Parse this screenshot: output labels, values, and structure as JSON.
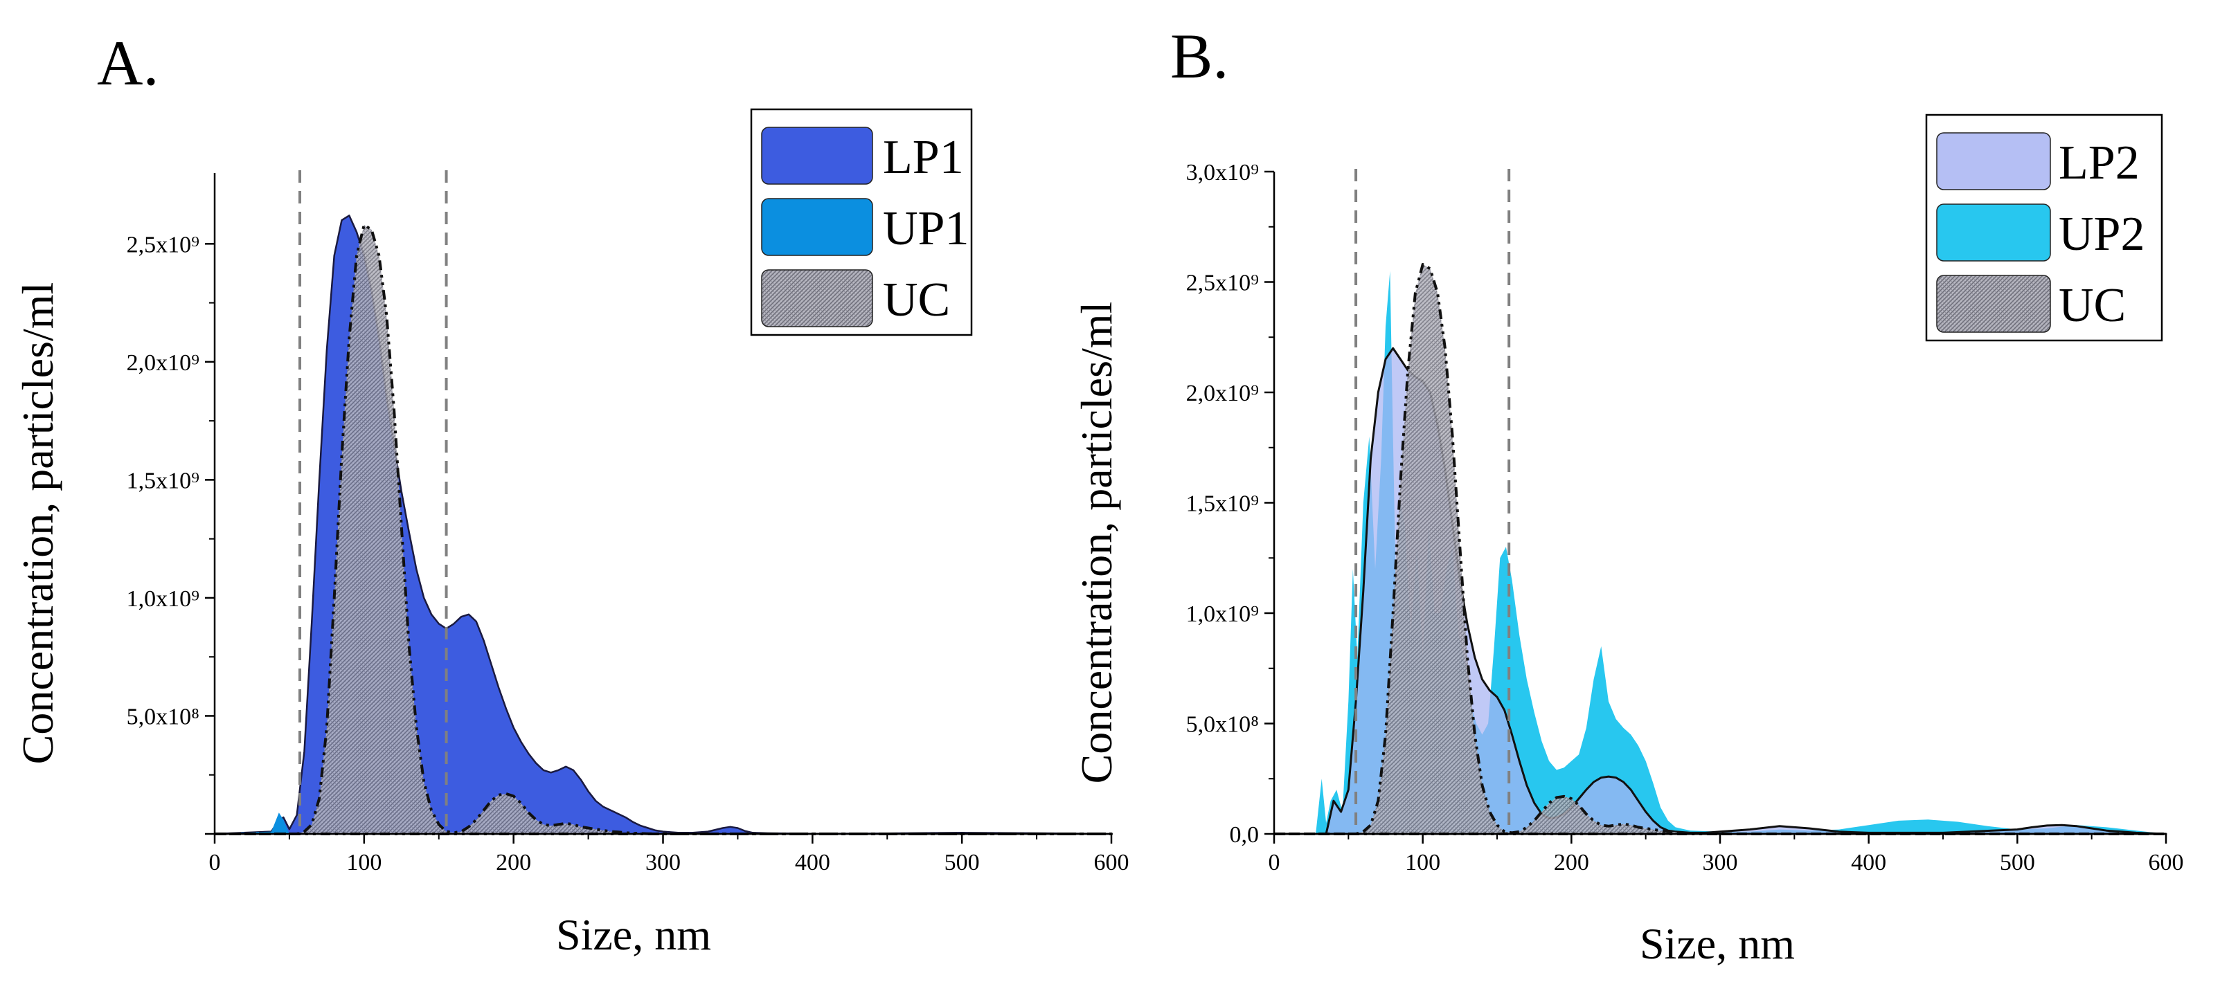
{
  "figure": {
    "panels": [
      {
        "id": "A",
        "panel_label": "A.",
        "chart_key": 0,
        "ytick_values": [
          0,
          500000000,
          1000000000,
          1500000000,
          2000000000,
          2500000000
        ],
        "ytick_labels": [
          "",
          "5,0x10⁸",
          "1,0x10⁹",
          "1,5x10⁹",
          "2,0x10⁹",
          "2,5x10⁹"
        ]
      },
      {
        "id": "B",
        "panel_label": "B.",
        "chart_key": 1,
        "ytick_values": [
          0,
          500000000,
          1000000000,
          1500000000,
          2000000000,
          2500000000,
          3000000000
        ],
        "ytick_labels": [
          "0,0",
          "5,0x10⁸",
          "1,0x10⁹",
          "1,5x10⁹",
          "2,0x10⁹",
          "2,5x10⁹",
          "3,0x10⁹"
        ]
      }
    ]
  },
  "colors": {
    "LP1": "#3d5ce0",
    "UP1": "#0b8fe0",
    "LP2": "#a8b4f2",
    "UP2": "#1cc4ee",
    "UC": "#9a9aa6",
    "dash": "#808080",
    "axis": "#000000"
  },
  "chart_data": [
    {
      "type": "area",
      "title": "",
      "xlabel": "Size, nm",
      "ylabel": "Concentration, particles/ml",
      "xlim": [
        0,
        600
      ],
      "ylim": [
        0,
        2800000000
      ],
      "xticks": [
        0,
        100,
        200,
        300,
        400,
        500,
        600
      ],
      "xtick_labels": [
        "0",
        "100",
        "200",
        "300",
        "400",
        "500",
        "600"
      ],
      "vlines": [
        57,
        155
      ],
      "legend_position": "top-right",
      "legend": [
        "LP1",
        "UP1",
        "UC"
      ],
      "series": [
        {
          "name": "LP1",
          "x": [
            0,
            38,
            43,
            46,
            50,
            55,
            60,
            65,
            70,
            75,
            80,
            85,
            90,
            95,
            100,
            105,
            110,
            115,
            120,
            125,
            130,
            135,
            140,
            145,
            150,
            155,
            160,
            165,
            170,
            175,
            180,
            185,
            190,
            195,
            200,
            205,
            210,
            215,
            220,
            225,
            230,
            235,
            240,
            245,
            250,
            255,
            260,
            265,
            270,
            275,
            280,
            285,
            290,
            295,
            300,
            310,
            320,
            330,
            340,
            345,
            350,
            355,
            360,
            370,
            380,
            400,
            450,
            500,
            550,
            600
          ],
          "y": [
            0,
            10000000,
            60000000,
            70000000,
            20000000,
            80000000,
            350000000,
            900000000,
            1500000000,
            2050000000,
            2450000000,
            2600000000,
            2620000000,
            2550000000,
            2450000000,
            2300000000,
            2100000000,
            1850000000,
            1650000000,
            1450000000,
            1280000000,
            1120000000,
            1000000000,
            930000000,
            890000000,
            870000000,
            890000000,
            920000000,
            930000000,
            900000000,
            820000000,
            720000000,
            620000000,
            530000000,
            450000000,
            390000000,
            340000000,
            300000000,
            270000000,
            260000000,
            270000000,
            285000000,
            270000000,
            230000000,
            180000000,
            140000000,
            115000000,
            100000000,
            85000000,
            70000000,
            50000000,
            35000000,
            25000000,
            15000000,
            10000000,
            5000000,
            5000000,
            10000000,
            25000000,
            30000000,
            25000000,
            12000000,
            5000000,
            3000000,
            2000000,
            1000000,
            2000000,
            5000000,
            3000000,
            0
          ]
        },
        {
          "name": "UP1",
          "x": [
            0,
            38,
            43,
            46,
            50,
            600
          ],
          "y": [
            0,
            10000000,
            90000000,
            60000000,
            0,
            0
          ]
        },
        {
          "name": "UC",
          "x": [
            0,
            55,
            60,
            65,
            70,
            75,
            80,
            85,
            90,
            95,
            100,
            105,
            110,
            115,
            120,
            125,
            130,
            135,
            140,
            145,
            150,
            155,
            160,
            165,
            170,
            175,
            180,
            185,
            190,
            195,
            200,
            205,
            210,
            215,
            220,
            225,
            230,
            235,
            240,
            245,
            250,
            255,
            260,
            265,
            270,
            275,
            280,
            285,
            290,
            300,
            600
          ],
          "y": [
            0,
            0,
            10000000,
            40000000,
            150000000,
            450000000,
            1000000000,
            1600000000,
            2100000000,
            2450000000,
            2580000000,
            2560000000,
            2450000000,
            2200000000,
            1800000000,
            1300000000,
            800000000,
            450000000,
            220000000,
            100000000,
            40000000,
            10000000,
            5000000,
            10000000,
            30000000,
            60000000,
            100000000,
            140000000,
            165000000,
            170000000,
            160000000,
            130000000,
            90000000,
            60000000,
            40000000,
            35000000,
            40000000,
            45000000,
            40000000,
            30000000,
            25000000,
            20000000,
            15000000,
            10000000,
            8000000,
            5000000,
            3000000,
            2000000,
            1000000,
            0,
            0
          ]
        }
      ]
    },
    {
      "type": "area",
      "title": "",
      "xlabel": "Size, nm",
      "ylabel": "Concentration, particles/ml",
      "xlim": [
        0,
        600
      ],
      "ylim": [
        0,
        3000000000
      ],
      "xticks": [
        0,
        100,
        200,
        300,
        400,
        500,
        600
      ],
      "xtick_labels": [
        "0",
        "100",
        "200",
        "300",
        "400",
        "500",
        "600"
      ],
      "vlines": [
        55,
        158
      ],
      "legend_position": "top-right",
      "legend": [
        "LP2",
        "UP2",
        "UC"
      ],
      "series": [
        {
          "name": "UP2",
          "x": [
            0,
            28,
            32,
            35,
            38,
            42,
            46,
            50,
            53,
            56,
            60,
            64,
            68,
            72,
            75,
            78,
            80,
            82,
            85,
            88,
            92,
            96,
            100,
            104,
            108,
            112,
            116,
            120,
            124,
            128,
            132,
            136,
            140,
            144,
            148,
            152,
            156,
            160,
            165,
            170,
            175,
            180,
            185,
            190,
            195,
            200,
            205,
            210,
            215,
            220,
            225,
            230,
            235,
            240,
            245,
            250,
            255,
            260,
            265,
            270,
            280,
            300,
            320,
            340,
            360,
            380,
            400,
            420,
            440,
            460,
            480,
            500,
            520,
            540,
            560,
            580,
            600
          ],
          "y": [
            0,
            0,
            250000000,
            50000000,
            150000000,
            200000000,
            100000000,
            600000000,
            1200000000,
            800000000,
            1500000000,
            1800000000,
            1200000000,
            1700000000,
            2300000000,
            2550000000,
            1800000000,
            1100000000,
            1500000000,
            1400000000,
            900000000,
            1300000000,
            800000000,
            1400000000,
            1000000000,
            1000000000,
            1200000000,
            1300000000,
            900000000,
            800000000,
            600000000,
            500000000,
            450000000,
            500000000,
            850000000,
            1250000000,
            1300000000,
            1150000000,
            900000000,
            700000000,
            550000000,
            420000000,
            330000000,
            290000000,
            300000000,
            330000000,
            360000000,
            480000000,
            700000000,
            850000000,
            600000000,
            520000000,
            480000000,
            450000000,
            400000000,
            330000000,
            230000000,
            120000000,
            60000000,
            30000000,
            15000000,
            10000000,
            10000000,
            20000000,
            15000000,
            20000000,
            40000000,
            60000000,
            65000000,
            55000000,
            35000000,
            20000000,
            25000000,
            40000000,
            30000000,
            15000000,
            0
          ]
        },
        {
          "name": "LP2",
          "x": [
            0,
            35,
            40,
            45,
            50,
            55,
            60,
            65,
            70,
            75,
            80,
            85,
            90,
            95,
            100,
            105,
            110,
            115,
            120,
            125,
            130,
            135,
            140,
            145,
            150,
            155,
            160,
            165,
            170,
            175,
            180,
            185,
            190,
            195,
            200,
            205,
            210,
            215,
            220,
            225,
            230,
            235,
            240,
            245,
            250,
            255,
            260,
            265,
            270,
            280,
            290,
            300,
            320,
            340,
            360,
            380,
            400,
            450,
            500,
            510,
            520,
            530,
            540,
            550,
            560,
            580,
            600
          ],
          "y": [
            0,
            0,
            150000000,
            100000000,
            200000000,
            600000000,
            1100000000,
            1700000000,
            2000000000,
            2150000000,
            2200000000,
            2150000000,
            2100000000,
            2070000000,
            2050000000,
            2000000000,
            1850000000,
            1650000000,
            1400000000,
            1150000000,
            950000000,
            800000000,
            700000000,
            650000000,
            620000000,
            560000000,
            450000000,
            330000000,
            220000000,
            140000000,
            90000000,
            70000000,
            75000000,
            90000000,
            120000000,
            160000000,
            200000000,
            235000000,
            255000000,
            260000000,
            255000000,
            235000000,
            200000000,
            150000000,
            100000000,
            60000000,
            30000000,
            15000000,
            10000000,
            5000000,
            5000000,
            10000000,
            20000000,
            35000000,
            25000000,
            10000000,
            5000000,
            5000000,
            20000000,
            30000000,
            38000000,
            40000000,
            35000000,
            25000000,
            15000000,
            5000000,
            0
          ]
        },
        {
          "name": "UC",
          "x": [
            0,
            55,
            60,
            65,
            70,
            75,
            80,
            85,
            90,
            95,
            100,
            105,
            110,
            115,
            120,
            125,
            130,
            135,
            140,
            145,
            150,
            155,
            160,
            165,
            170,
            175,
            180,
            185,
            190,
            195,
            200,
            205,
            210,
            215,
            220,
            225,
            230,
            235,
            240,
            245,
            250,
            255,
            260,
            265,
            270,
            275,
            280,
            285,
            290,
            300,
            600
          ],
          "y": [
            0,
            0,
            10000000,
            40000000,
            150000000,
            450000000,
            1000000000,
            1600000000,
            2100000000,
            2450000000,
            2580000000,
            2560000000,
            2450000000,
            2200000000,
            1800000000,
            1300000000,
            800000000,
            450000000,
            220000000,
            100000000,
            40000000,
            10000000,
            5000000,
            10000000,
            30000000,
            60000000,
            100000000,
            140000000,
            165000000,
            170000000,
            160000000,
            130000000,
            90000000,
            60000000,
            40000000,
            35000000,
            40000000,
            45000000,
            40000000,
            30000000,
            25000000,
            20000000,
            15000000,
            10000000,
            8000000,
            5000000,
            3000000,
            2000000,
            1000000,
            0,
            0
          ]
        }
      ]
    }
  ]
}
